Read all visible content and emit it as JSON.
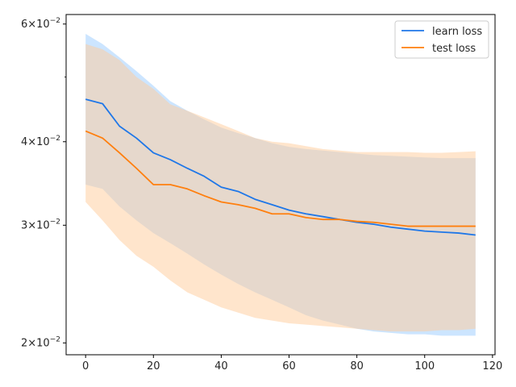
{
  "chart_data": {
    "type": "line",
    "title": "",
    "xlabel": "",
    "ylabel": "",
    "xlim": [
      -5.75,
      120.75
    ],
    "ylim": [
      0.0192,
      0.062
    ],
    "yscale": "log",
    "grid": false,
    "legend_position": "top-right",
    "x_ticks": [
      0,
      20,
      40,
      60,
      80,
      100,
      120
    ],
    "y_ticks": [
      {
        "value": 0.02,
        "base": "2",
        "exp": "−2"
      },
      {
        "value": 0.03,
        "base": "3",
        "exp": "−2"
      },
      {
        "value": 0.04,
        "base": "4",
        "exp": "−2"
      },
      {
        "value": 0.06,
        "base": "6",
        "exp": "−2"
      }
    ],
    "y_minor_ticks": [
      0.05
    ],
    "series": [
      {
        "name": "learn loss",
        "color": "#1f77e8",
        "band_color": "#99ccff",
        "x": [
          0,
          5,
          10,
          15,
          20,
          25,
          30,
          35,
          40,
          45,
          50,
          55,
          60,
          65,
          70,
          75,
          80,
          85,
          90,
          95,
          100,
          105,
          110,
          115
        ],
        "mean": [
          0.0463,
          0.0456,
          0.0422,
          0.0405,
          0.0385,
          0.0376,
          0.0365,
          0.0355,
          0.0342,
          0.0337,
          0.0328,
          0.0322,
          0.0316,
          0.0312,
          0.0309,
          0.0306,
          0.0303,
          0.0301,
          0.0298,
          0.0296,
          0.0294,
          0.0293,
          0.0292,
          0.029
        ],
        "upper": [
          0.058,
          0.056,
          0.0535,
          0.051,
          0.0485,
          0.046,
          0.0445,
          0.0432,
          0.042,
          0.0412,
          0.0405,
          0.0398,
          0.0393,
          0.039,
          0.0388,
          0.0386,
          0.0384,
          0.0382,
          0.0381,
          0.038,
          0.0379,
          0.0378,
          0.0378,
          0.0378
        ],
        "lower": [
          0.0345,
          0.034,
          0.032,
          0.0305,
          0.0292,
          0.0282,
          0.0272,
          0.0262,
          0.0253,
          0.0245,
          0.0238,
          0.0232,
          0.0226,
          0.022,
          0.0216,
          0.0213,
          0.021,
          0.0208,
          0.0207,
          0.0206,
          0.0206,
          0.0205,
          0.0205,
          0.0205
        ]
      },
      {
        "name": "test loss",
        "color": "#ff7f0e",
        "band_color": "#ffcc99",
        "x": [
          0,
          5,
          10,
          15,
          20,
          25,
          30,
          35,
          40,
          45,
          50,
          55,
          60,
          65,
          70,
          75,
          80,
          85,
          90,
          95,
          100,
          105,
          110,
          115
        ],
        "mean": [
          0.0415,
          0.0405,
          0.0385,
          0.0365,
          0.0345,
          0.0345,
          0.034,
          0.0332,
          0.0325,
          0.0322,
          0.0318,
          0.0312,
          0.0312,
          0.0308,
          0.0306,
          0.0306,
          0.0304,
          0.0303,
          0.0301,
          0.0299,
          0.0299,
          0.0299,
          0.0299,
          0.0299
        ],
        "upper": [
          0.056,
          0.055,
          0.053,
          0.05,
          0.048,
          0.0455,
          0.0445,
          0.0435,
          0.0425,
          0.0415,
          0.0405,
          0.04,
          0.0398,
          0.0394,
          0.039,
          0.0388,
          0.0386,
          0.0386,
          0.0386,
          0.0386,
          0.0385,
          0.0385,
          0.0386,
          0.0387
        ],
        "lower": [
          0.0325,
          0.0305,
          0.0285,
          0.027,
          0.026,
          0.0248,
          0.0238,
          0.0232,
          0.0226,
          0.0222,
          0.0218,
          0.0216,
          0.0214,
          0.0213,
          0.0212,
          0.0211,
          0.021,
          0.0209,
          0.0208,
          0.0208,
          0.0208,
          0.0209,
          0.0209,
          0.021
        ]
      }
    ]
  }
}
